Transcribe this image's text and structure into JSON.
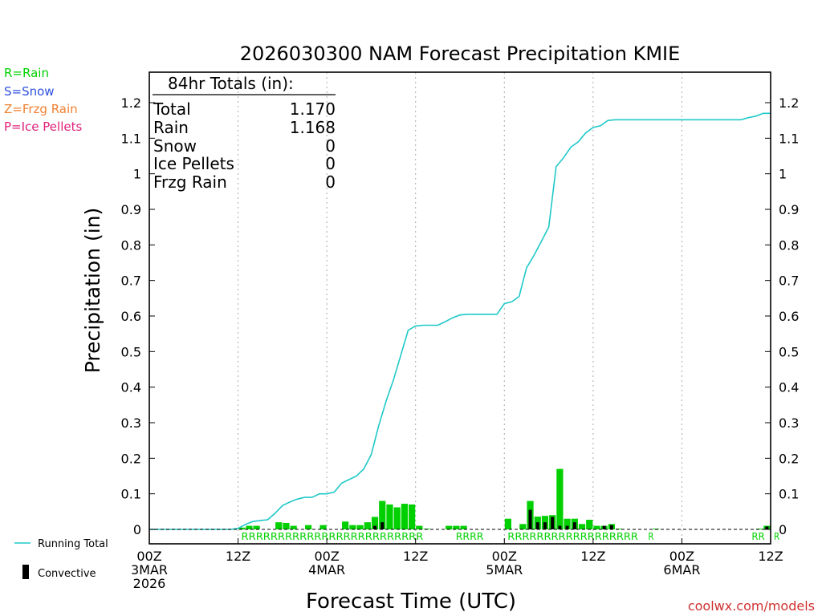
{
  "chart_data": {
    "type": "bar+line",
    "title": "2026030300 NAM Forecast Precipitation KMIE",
    "ylabel": "Precipitation  (in)",
    "xlabel": "Forecast Time (UTC)",
    "watermark": "coolwx.com/models",
    "ylim": [
      0,
      1.2
    ],
    "xlim_hours": [
      0,
      84
    ],
    "yticks": [
      {
        "v": 0,
        "label": "0"
      },
      {
        "v": 0.1,
        "label": "0.1"
      },
      {
        "v": 0.2,
        "label": "0.2"
      },
      {
        "v": 0.3,
        "label": "0.3"
      },
      {
        "v": 0.4,
        "label": "0.4"
      },
      {
        "v": 0.5,
        "label": "0.5"
      },
      {
        "v": 0.6,
        "label": "0.6"
      },
      {
        "v": 0.7,
        "label": "0.7"
      },
      {
        "v": 0.8,
        "label": "0.8"
      },
      {
        "v": 0.9,
        "label": "0.9"
      },
      {
        "v": 1.0,
        "label": "1"
      },
      {
        "v": 1.1,
        "label": "1.1"
      },
      {
        "v": 1.2,
        "label": "1.2"
      }
    ],
    "xticks": [
      {
        "h": 0,
        "lines": [
          "00Z",
          "3MAR",
          "2026"
        ]
      },
      {
        "h": 12,
        "lines": [
          "12Z"
        ]
      },
      {
        "h": 24,
        "lines": [
          "00Z",
          "4MAR"
        ]
      },
      {
        "h": 36,
        "lines": [
          "12Z"
        ]
      },
      {
        "h": 48,
        "lines": [
          "00Z",
          "5MAR"
        ]
      },
      {
        "h": 60,
        "lines": [
          "12Z"
        ]
      },
      {
        "h": 72,
        "lines": [
          "00Z",
          "6MAR"
        ]
      },
      {
        "h": 84,
        "lines": [
          "12Z"
        ]
      }
    ],
    "legend_types": [
      {
        "label": "R=Rain",
        "color": "#00d000"
      },
      {
        "label": "S=Snow",
        "color": "#3050e0"
      },
      {
        "label": "Z=Frzg Rain",
        "color": "#f08030"
      },
      {
        "label": "P=Ice Pellets",
        "color": "#e0207a"
      }
    ],
    "legend_lines": {
      "running_total": "Running Total",
      "convective": "Convective"
    },
    "totals": {
      "heading": "84hr Totals (in):",
      "rows": [
        {
          "label": "Total",
          "value": "1.170"
        },
        {
          "label": "Rain",
          "value": "1.168"
        },
        {
          "label": "Snow",
          "value": "0"
        },
        {
          "label": "Ice Pellets",
          "value": "0"
        },
        {
          "label": "Frzg Rain",
          "value": "0"
        }
      ]
    },
    "colors": {
      "bars": "#00d000",
      "convective": "#000000",
      "line": "#20c8c8",
      "grid": "#aaaaaa",
      "ptype": "#00d000"
    },
    "hourly_precip": {
      "hours": [
        12,
        13,
        14,
        17,
        18,
        19,
        21,
        23,
        26,
        27,
        28,
        29,
        30,
        31,
        32,
        33,
        34,
        35,
        36,
        37,
        40,
        41,
        42,
        48,
        50,
        51,
        52,
        53,
        54,
        55,
        56,
        57,
        58,
        59,
        60,
        61,
        62,
        63,
        68,
        82,
        83
      ],
      "total": [
        0.005,
        0.01,
        0.01,
        0.02,
        0.018,
        0.01,
        0.012,
        0.012,
        0.022,
        0.012,
        0.012,
        0.02,
        0.035,
        0.08,
        0.07,
        0.062,
        0.072,
        0.07,
        0.01,
        0.002,
        0.01,
        0.01,
        0.01,
        0.03,
        0.015,
        0.08,
        0.036,
        0.038,
        0.04,
        0.17,
        0.03,
        0.03,
        0.015,
        0.027,
        0.01,
        0.01,
        0.015,
        0.002,
        0.002,
        0.002,
        0.01
      ],
      "convective": [
        0,
        0,
        0,
        0,
        0,
        0,
        0,
        0,
        0,
        0,
        0,
        0,
        0.01,
        0.02,
        0,
        0,
        0,
        0,
        0,
        0,
        0,
        0,
        0,
        0,
        0,
        0.055,
        0.02,
        0.02,
        0.035,
        0.01,
        0.01,
        0.02,
        0,
        0,
        0,
        0.01,
        0.012,
        0,
        0,
        0,
        0.008
      ]
    },
    "running_total": {
      "hours": [
        0,
        11,
        12,
        13,
        14,
        15,
        16,
        17,
        18,
        19,
        20,
        21,
        22,
        23,
        24,
        25,
        26,
        27,
        28,
        29,
        30,
        31,
        32,
        33,
        34,
        35,
        36,
        37,
        38,
        39,
        40,
        41,
        42,
        43,
        44,
        45,
        46,
        47,
        48,
        49,
        50,
        51,
        52,
        53,
        54,
        55,
        56,
        57,
        58,
        59,
        60,
        61,
        62,
        63,
        64,
        65,
        66,
        67,
        68,
        69,
        70,
        71,
        72,
        73,
        74,
        75,
        76,
        77,
        78,
        79,
        80,
        81,
        82,
        83,
        84
      ],
      "values": [
        0,
        0,
        0.003,
        0.014,
        0.022,
        0.025,
        0.027,
        0.045,
        0.067,
        0.077,
        0.085,
        0.09,
        0.09,
        0.1,
        0.1,
        0.105,
        0.13,
        0.14,
        0.15,
        0.17,
        0.21,
        0.29,
        0.36,
        0.42,
        0.49,
        0.56,
        0.572,
        0.574,
        0.574,
        0.574,
        0.584,
        0.595,
        0.603,
        0.605,
        0.605,
        0.605,
        0.605,
        0.605,
        0.635,
        0.64,
        0.655,
        0.735,
        0.77,
        0.81,
        0.85,
        1.02,
        1.045,
        1.075,
        1.09,
        1.115,
        1.13,
        1.135,
        1.15,
        1.152,
        1.152,
        1.152,
        1.152,
        1.152,
        1.152,
        1.152,
        1.152,
        1.152,
        1.152,
        1.152,
        1.152,
        1.152,
        1.152,
        1.152,
        1.152,
        1.152,
        1.152,
        1.158,
        1.162,
        1.17,
        1.17
      ]
    },
    "ptype_row": [
      {
        "h": 12,
        "text": "RRRRRRRRRRRRRRRRRRRRRRRRR"
      },
      {
        "h": 41,
        "text": "RRRR"
      },
      {
        "h": 48,
        "text": "RRRRRRRRRRRRRRRRRR"
      },
      {
        "h": 67,
        "text": "R"
      },
      {
        "h": 81,
        "text": "RR"
      },
      {
        "h": 84,
        "text": "R"
      }
    ]
  }
}
